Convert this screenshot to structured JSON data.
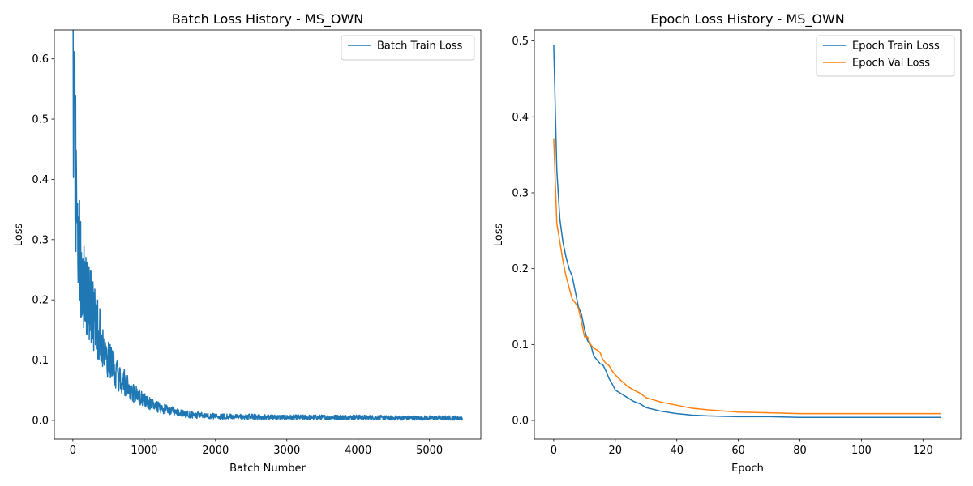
{
  "chart_data": [
    {
      "type": "line",
      "title": "Batch Loss History - MS_OWN",
      "xlabel": "Batch Number",
      "ylabel": "Loss",
      "xlim": [
        -260,
        5720
      ],
      "ylim": [
        -0.031,
        0.648
      ],
      "xticks": [
        0,
        1000,
        2000,
        3000,
        4000,
        5000
      ],
      "yticks": [
        0.0,
        0.1,
        0.2,
        0.3,
        0.4,
        0.5,
        0.6
      ],
      "xtick_labels": [
        "0",
        "1000",
        "2000",
        "3000",
        "4000",
        "5000"
      ],
      "ytick_labels": [
        "0.0",
        "0.1",
        "0.2",
        "0.3",
        "0.4",
        "0.5",
        "0.6"
      ],
      "grid": false,
      "legend_position": "upper right",
      "noisy": true,
      "series": [
        {
          "name": "Batch Train Loss",
          "color": "#1f77b4",
          "x": [
            0,
            10,
            20,
            30,
            40,
            50,
            60,
            80,
            100,
            120,
            150,
            180,
            200,
            250,
            300,
            350,
            400,
            450,
            500,
            600,
            700,
            800,
            900,
            1000,
            1100,
            1200,
            1300,
            1400,
            1500,
            1600,
            1700,
            1800,
            2000,
            2200,
            2500,
            3000,
            3500,
            4000,
            4500,
            5000,
            5460
          ],
          "y": [
            0.59,
            0.55,
            0.5,
            0.46,
            0.42,
            0.39,
            0.35,
            0.3,
            0.27,
            0.245,
            0.23,
            0.215,
            0.205,
            0.19,
            0.17,
            0.15,
            0.13,
            0.115,
            0.1,
            0.08,
            0.065,
            0.05,
            0.04,
            0.032,
            0.027,
            0.022,
            0.018,
            0.015,
            0.012,
            0.01,
            0.009,
            0.008,
            0.007,
            0.006,
            0.006,
            0.005,
            0.005,
            0.005,
            0.004,
            0.004,
            0.004
          ]
        }
      ]
    },
    {
      "type": "line",
      "title": "Epoch Loss History - MS_OWN",
      "xlabel": "Epoch",
      "ylabel": "Loss",
      "xlim": [
        -6.3,
        132.3
      ],
      "ylim": [
        -0.0245,
        0.5145
      ],
      "xticks": [
        0,
        20,
        40,
        60,
        80,
        100,
        120
      ],
      "yticks": [
        0.0,
        0.1,
        0.2,
        0.3,
        0.4,
        0.5
      ],
      "xtick_labels": [
        "0",
        "20",
        "40",
        "60",
        "80",
        "100",
        "120"
      ],
      "ytick_labels": [
        "0.0",
        "0.1",
        "0.2",
        "0.3",
        "0.4",
        "0.5"
      ],
      "grid": false,
      "legend_position": "upper right",
      "series": [
        {
          "name": "Epoch Train Loss",
          "color": "#1f77b4",
          "x": [
            0,
            1,
            2,
            3,
            4,
            5,
            6,
            7,
            8,
            9,
            10,
            11,
            12,
            13,
            14,
            15,
            16,
            17,
            18,
            19,
            20,
            22,
            24,
            26,
            28,
            30,
            35,
            40,
            45,
            50,
            60,
            70,
            80,
            90,
            100,
            110,
            120,
            126
          ],
          "y": [
            0.495,
            0.33,
            0.265,
            0.235,
            0.215,
            0.2,
            0.19,
            0.17,
            0.15,
            0.14,
            0.12,
            0.105,
            0.1,
            0.085,
            0.08,
            0.075,
            0.073,
            0.065,
            0.055,
            0.048,
            0.04,
            0.035,
            0.03,
            0.025,
            0.022,
            0.017,
            0.012,
            0.009,
            0.007,
            0.006,
            0.005,
            0.005,
            0.004,
            0.004,
            0.004,
            0.004,
            0.004,
            0.004
          ]
        },
        {
          "name": "Epoch Val Loss",
          "color": "#ff7f0e",
          "x": [
            0,
            1,
            2,
            3,
            4,
            5,
            6,
            7,
            8,
            9,
            10,
            11,
            12,
            13,
            14,
            15,
            16,
            17,
            18,
            19,
            20,
            22,
            24,
            26,
            28,
            30,
            35,
            40,
            45,
            50,
            60,
            70,
            80,
            90,
            100,
            110,
            120,
            126
          ],
          "y": [
            0.372,
            0.26,
            0.235,
            0.21,
            0.19,
            0.175,
            0.16,
            0.155,
            0.148,
            0.13,
            0.11,
            0.11,
            0.1,
            0.095,
            0.093,
            0.09,
            0.08,
            0.075,
            0.072,
            0.065,
            0.06,
            0.052,
            0.045,
            0.04,
            0.036,
            0.03,
            0.024,
            0.02,
            0.016,
            0.014,
            0.011,
            0.01,
            0.009,
            0.009,
            0.009,
            0.009,
            0.009,
            0.009
          ]
        }
      ]
    }
  ]
}
